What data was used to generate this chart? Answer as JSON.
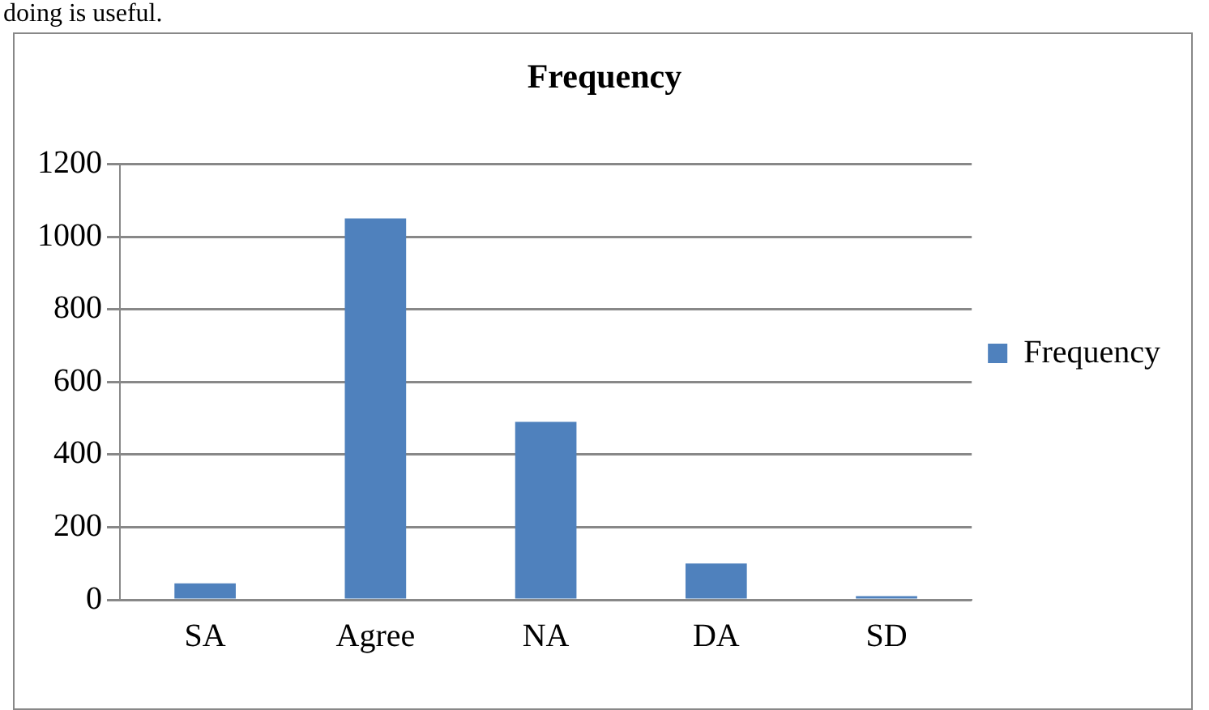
{
  "chart_data": {
    "type": "bar",
    "title": "Frequency",
    "categories": [
      "SA",
      "Agree",
      "NA",
      "DA",
      "SD"
    ],
    "series": [
      {
        "name": "Frequency",
        "color": "#4f81bd",
        "values": [
          45,
          1050,
          490,
          100,
          10
        ]
      }
    ],
    "ylim": [
      0,
      1200
    ],
    "yticks": [
      0,
      200,
      400,
      600,
      800,
      1000,
      1200
    ],
    "grid": "y",
    "legend": "right",
    "annotations": [
      "doing is useful."
    ]
  }
}
